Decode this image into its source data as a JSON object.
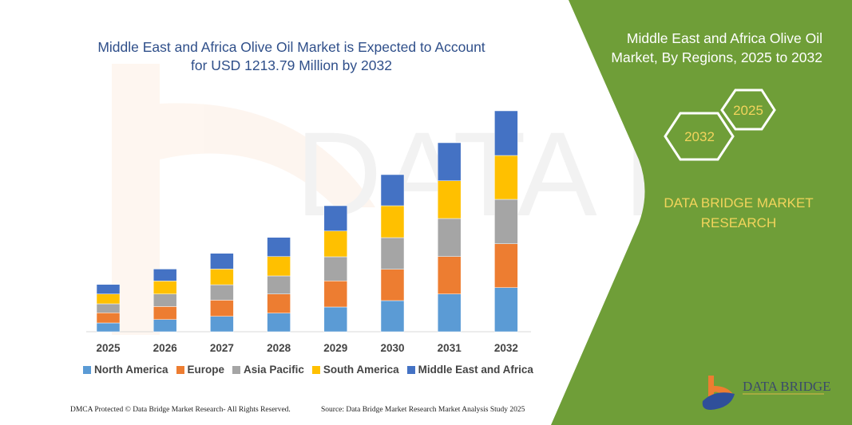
{
  "header": {
    "title_line1": "Middle East and Africa Olive Oil Market is Expected to Account",
    "title_line2": "for USD 1213.79 Million by 2032"
  },
  "side": {
    "title_line1": "Middle East and Africa Olive Oil",
    "title_line2": "Market, By Regions, 2025 to 2032",
    "hex_start": "2025",
    "hex_end": "2032",
    "brand_line1": "DATA BRIDGE MARKET",
    "brand_line2": "RESEARCH",
    "logo_text": "DATA BRIDGE",
    "green": "#6f9e38"
  },
  "footer": {
    "left": "DMCA Protected © Data Bridge Market Research- All Rights Reserved.",
    "right": "Source: Data Bridge Market Research Market Analysis Study 2025"
  },
  "chart_data": {
    "type": "bar",
    "stacked": true,
    "grid": false,
    "legend_placement": "bottom",
    "categories": [
      "2025",
      "2026",
      "2027",
      "2028",
      "2029",
      "2030",
      "2031",
      "2032"
    ],
    "series": [
      {
        "name": "North America",
        "color": "#5b9bd5",
        "values": [
          11,
          15.3,
          19.3,
          23.3,
          31,
          39,
          47.3,
          55.3
        ]
      },
      {
        "name": "Europe",
        "color": "#ed7d31",
        "values": [
          12.7,
          16.3,
          20.3,
          24,
          32.7,
          39.3,
          47,
          55
        ]
      },
      {
        "name": "Asia Pacific",
        "color": "#a5a5a5",
        "values": [
          11.3,
          15.7,
          19.3,
          22.7,
          30.3,
          39.7,
          47.7,
          55.7
        ]
      },
      {
        "name": "South America",
        "color": "#ffc000",
        "values": [
          12.3,
          16.3,
          19.7,
          24.3,
          32.3,
          40,
          47.3,
          55
        ]
      },
      {
        "name": "Middle East and Africa",
        "color": "#4472c4",
        "values": [
          12,
          15,
          19.7,
          24,
          31.7,
          39,
          47.7,
          56
        ]
      }
    ]
  }
}
